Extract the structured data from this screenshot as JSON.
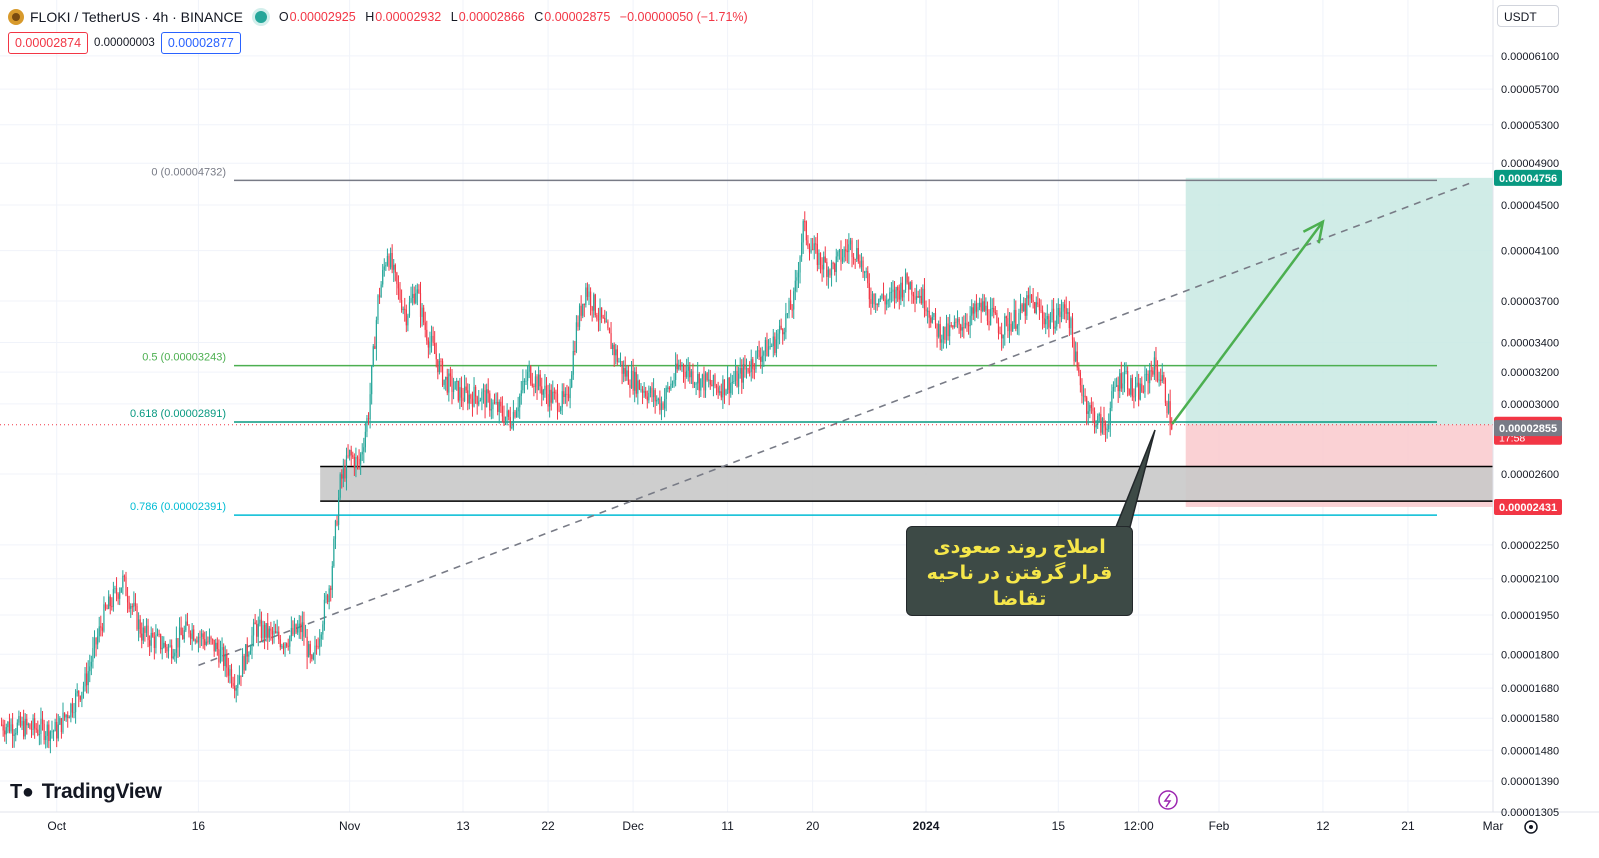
{
  "header": {
    "title": "FLOKI / TetherUS · 4h · BINANCE",
    "ohlc": [
      {
        "key": "O",
        "value": "0.00002925"
      },
      {
        "key": "H",
        "value": "0.00002932"
      },
      {
        "key": "L",
        "value": "0.00002866"
      },
      {
        "key": "C",
        "value": "0.00002875"
      }
    ],
    "change": "−0.00000050 (−1.71%)",
    "sell_price": "0.00002874",
    "spread": "0.00000003",
    "buy_price": "0.00002877",
    "currency": "USDT"
  },
  "branding": {
    "name": "TradingView"
  },
  "annotation": {
    "line1": "اصلاح روند صعودی",
    "line2": "قرار گرفتن در ناحیه تقاضا"
  },
  "colors": {
    "up": "#26a69a",
    "down": "#f23645",
    "fib_0": "#787b86",
    "fib_05": "#4caf50",
    "fib_0618": "#089981",
    "fib_0786": "#00bcd4",
    "target_zone": "#c8e9e3",
    "stop_zone": "#f9c9cd",
    "demand_zone": "#c9c9c9",
    "arrow": "#4caf50"
  },
  "chart_data": {
    "type": "candlestick",
    "symbol": "FLOKI / TetherUS",
    "interval": "4h",
    "exchange": "BINANCE",
    "y_scale": "log",
    "ylim": [
      1.305e-05,
      6.3e-05
    ],
    "y_ticks": [
      "0.00006100",
      "0.00005700",
      "0.00005300",
      "0.00004900",
      "0.00004500",
      "0.00004100",
      "0.00003700",
      "0.00003400",
      "0.00003200",
      "0.00003000",
      "0.00002600",
      "0.00002250",
      "0.00002100",
      "0.00001950",
      "0.00001800",
      "0.00001680",
      "0.00001580",
      "0.00001480",
      "0.00001390",
      "0.00001305"
    ],
    "x_ticks": [
      {
        "label": "Oct",
        "date": "2023-10-01"
      },
      {
        "label": "16",
        "date": "2023-10-16"
      },
      {
        "label": "Nov",
        "date": "2023-11-01"
      },
      {
        "label": "13",
        "date": "2023-11-13"
      },
      {
        "label": "22",
        "date": "2023-11-22"
      },
      {
        "label": "Dec",
        "date": "2023-12-01"
      },
      {
        "label": "11",
        "date": "2023-12-11"
      },
      {
        "label": "20",
        "date": "2023-12-20"
      },
      {
        "label": "2024",
        "date": "2024-01-01",
        "bold": true
      },
      {
        "label": "15",
        "date": "2024-01-15"
      },
      {
        "label": "12:00",
        "date": "2024-01-23T12:00"
      },
      {
        "label": "Feb",
        "date": "2024-02-01"
      },
      {
        "label": "12",
        "date": "2024-02-12"
      },
      {
        "label": "21",
        "date": "2024-02-21"
      },
      {
        "label": "Mar",
        "date": "2024-03-01"
      }
    ],
    "x_range": [
      "2023-09-25",
      "2024-03-01"
    ],
    "last_date": "2024-01-27",
    "price_path": [
      [
        "2023-09-25",
        1.56e-05
      ],
      [
        "2023-10-01",
        1.54e-05
      ],
      [
        "2023-10-04",
        1.7e-05
      ],
      [
        "2023-10-06",
        1.95e-05
      ],
      [
        "2023-10-08",
        2.09e-05
      ],
      [
        "2023-10-10",
        1.88e-05
      ],
      [
        "2023-10-13",
        1.82e-05
      ],
      [
        "2023-10-15",
        1.9e-05
      ],
      [
        "2023-10-18",
        1.82e-05
      ],
      [
        "2023-10-20",
        1.7e-05
      ],
      [
        "2023-10-22",
        1.9e-05
      ],
      [
        "2023-10-25",
        1.85e-05
      ],
      [
        "2023-10-27",
        1.9e-05
      ],
      [
        "2023-10-28",
        1.75e-05
      ],
      [
        "2023-10-30",
        2.1e-05
      ],
      [
        "2023-10-31",
        2.55e-05
      ],
      [
        "2023-11-01",
        2.7e-05
      ],
      [
        "2023-11-02",
        2.65e-05
      ],
      [
        "2023-11-03",
        2.95e-05
      ],
      [
        "2023-11-04",
        3.7e-05
      ],
      [
        "2023-11-05",
        4.1e-05
      ],
      [
        "2023-11-06",
        3.8e-05
      ],
      [
        "2023-11-07",
        3.6e-05
      ],
      [
        "2023-11-08",
        3.8e-05
      ],
      [
        "2023-11-09",
        3.5e-05
      ],
      [
        "2023-11-11",
        3.15e-05
      ],
      [
        "2023-11-13",
        3.05e-05
      ],
      [
        "2023-11-15",
        3.05e-05
      ],
      [
        "2023-11-17",
        2.95e-05
      ],
      [
        "2023-11-18",
        2.9e-05
      ],
      [
        "2023-11-20",
        3.2e-05
      ],
      [
        "2023-11-22",
        3.05e-05
      ],
      [
        "2023-11-24",
        3e-05
      ],
      [
        "2023-11-25",
        3.5e-05
      ],
      [
        "2023-11-26",
        3.8e-05
      ],
      [
        "2023-11-28",
        3.5e-05
      ],
      [
        "2023-11-30",
        3.2e-05
      ],
      [
        "2023-12-02",
        3.1e-05
      ],
      [
        "2023-12-04",
        3e-05
      ],
      [
        "2023-12-06",
        3.25e-05
      ],
      [
        "2023-12-08",
        3.15e-05
      ],
      [
        "2023-12-10",
        3.1e-05
      ],
      [
        "2023-12-12",
        3.15e-05
      ],
      [
        "2023-12-14",
        3.3e-05
      ],
      [
        "2023-12-16",
        3.4e-05
      ],
      [
        "2023-12-18",
        3.7e-05
      ],
      [
        "2023-12-19",
        4.3e-05
      ],
      [
        "2023-12-20",
        4.1e-05
      ],
      [
        "2023-12-21",
        4e-05
      ],
      [
        "2023-12-22",
        3.95e-05
      ],
      [
        "2023-12-24",
        4.15e-05
      ],
      [
        "2023-12-25",
        4.05e-05
      ],
      [
        "2023-12-26",
        3.75e-05
      ],
      [
        "2023-12-28",
        3.7e-05
      ],
      [
        "2023-12-30",
        3.85e-05
      ],
      [
        "2024-01-01",
        3.7e-05
      ],
      [
        "2024-01-02",
        3.5e-05
      ],
      [
        "2024-01-03",
        3.45e-05
      ],
      [
        "2024-01-05",
        3.55e-05
      ],
      [
        "2024-01-07",
        3.65e-05
      ],
      [
        "2024-01-09",
        3.5e-05
      ],
      [
        "2024-01-11",
        3.6e-05
      ],
      [
        "2024-01-12",
        3.7e-05
      ],
      [
        "2024-01-14",
        3.55e-05
      ],
      [
        "2024-01-15",
        3.6e-05
      ],
      [
        "2024-01-16",
        3.65e-05
      ],
      [
        "2024-01-17",
        3.2e-05
      ],
      [
        "2024-01-18",
        3e-05
      ],
      [
        "2024-01-19",
        2.9e-05
      ],
      [
        "2024-01-20",
        2.85e-05
      ],
      [
        "2024-01-21",
        3.1e-05
      ],
      [
        "2024-01-22",
        3.2e-05
      ],
      [
        "2024-01-23",
        3.05e-05
      ],
      [
        "2024-01-24",
        3.1e-05
      ],
      [
        "2024-01-25",
        3.25e-05
      ],
      [
        "2024-01-26",
        3.15e-05
      ],
      [
        "2024-01-27",
        2.875e-05
      ]
    ],
    "fib_levels": [
      {
        "label": "0 (0.00004732)",
        "price": 4.732e-05,
        "color": "#787b86"
      },
      {
        "label": "0.5 (0.00003243)",
        "price": 3.243e-05,
        "color": "#4caf50"
      },
      {
        "label": "0.618 (0.00002891)",
        "price": 2.891e-05,
        "color": "#089981"
      },
      {
        "label": "0.786 (0.00002391)",
        "price": 2.391e-05,
        "color": "#00bcd4"
      }
    ],
    "demand_zone": {
      "top": 2.64e-05,
      "bottom": 2.46e-05
    },
    "position": {
      "entry": 2.875e-05,
      "target": 4.756e-05,
      "stop": 2.431e-05
    },
    "price_labels": [
      {
        "value": "0.00004756",
        "price": 4.756e-05,
        "bg": "#089981"
      },
      {
        "value": "0.00002875",
        "price": 2.875e-05,
        "bg": "#f23645",
        "sub": "17:58"
      },
      {
        "value": "0.00002855",
        "price": 2.855e-05,
        "bg": "#787b86"
      },
      {
        "value": "0.00002431",
        "price": 2.431e-05,
        "bg": "#f23645"
      }
    ],
    "trend_line": {
      "from": [
        "2023-10-16",
        1.76e-05
      ],
      "to": [
        "2024-02-28",
        4.72e-05
      ]
    },
    "target_arrow": {
      "from": [
        "2024-01-26",
        2.88e-05
      ],
      "to": [
        "2024-02-12",
        4.35e-05
      ]
    }
  }
}
